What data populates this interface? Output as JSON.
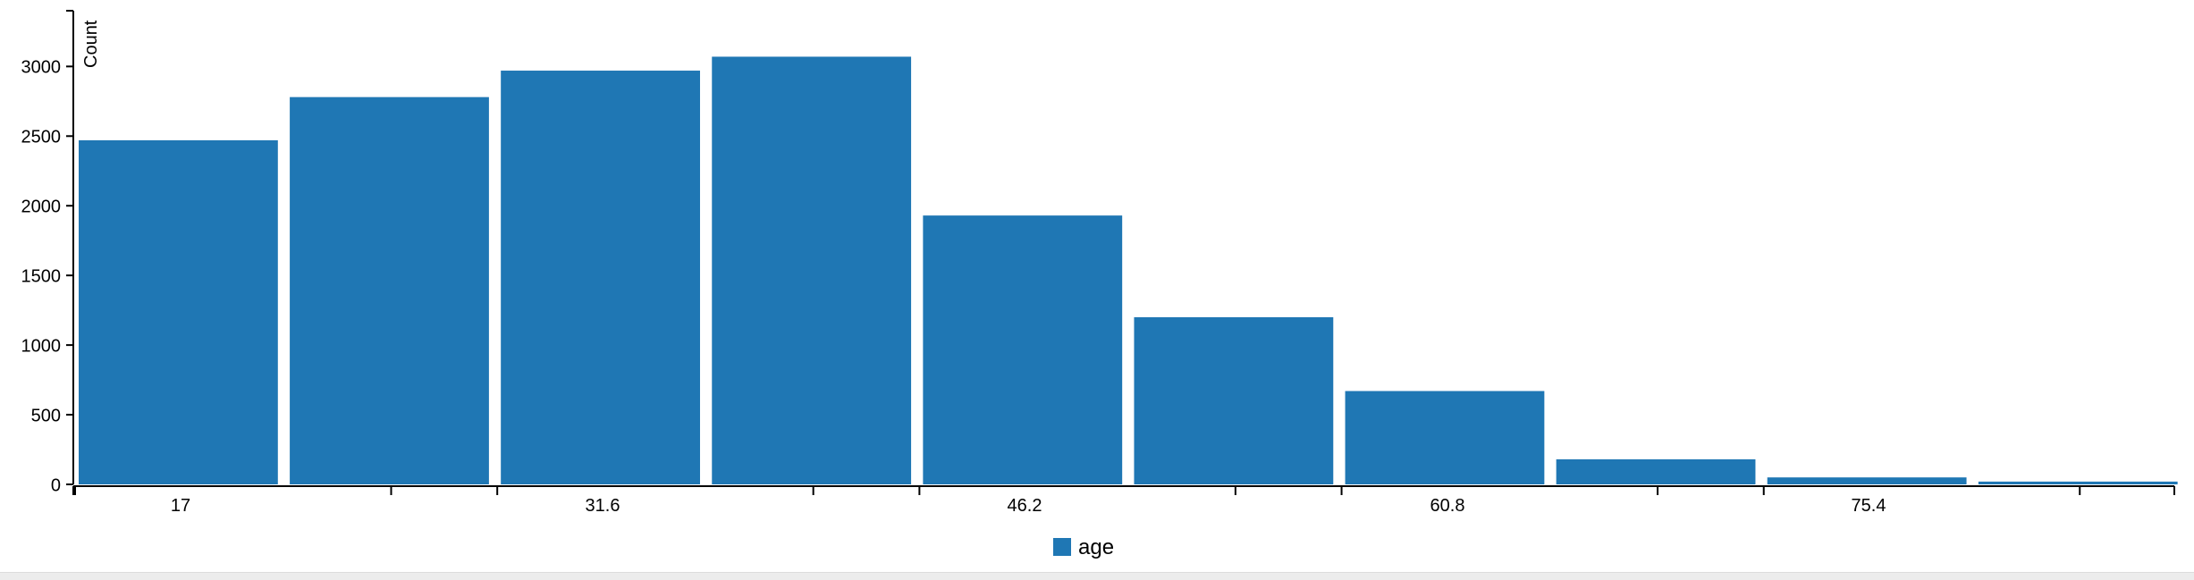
{
  "chart_data": {
    "type": "bar",
    "title": "",
    "xlabel": "",
    "ylabel": "Count",
    "x_range": [
      17,
      89.6
    ],
    "ylim": [
      0,
      3400
    ],
    "yticks": [
      0,
      500,
      1000,
      1500,
      2000,
      2500,
      3000
    ],
    "xtick_labels": [
      "17",
      "31.6",
      "46.2",
      "60.8",
      "75.4"
    ],
    "bin_starts": [
      17,
      24.3,
      31.6,
      38.9,
      46.2,
      53.5,
      60.8,
      68.1,
      75.4,
      82.7
    ],
    "series": [
      {
        "name": "age",
        "color": "#1f77b4",
        "values": [
          2470,
          2780,
          2970,
          3070,
          1930,
          1200,
          670,
          180,
          50,
          20
        ]
      }
    ],
    "grid": false,
    "legend": {
      "position": "bottom-center",
      "icon": "color-swatch"
    }
  }
}
